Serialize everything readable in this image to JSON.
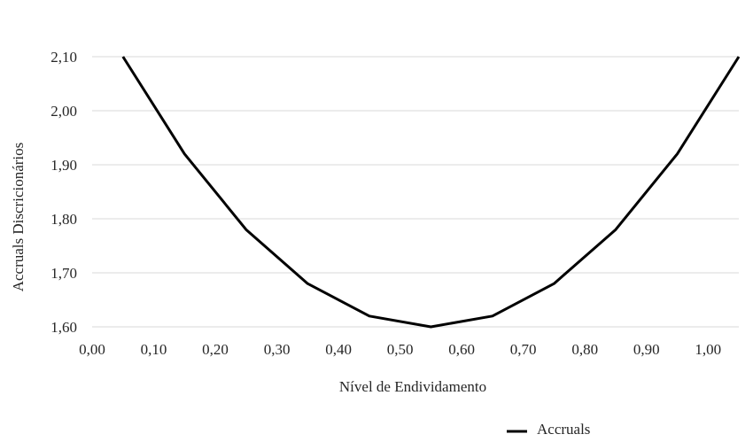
{
  "chart_data": {
    "type": "line",
    "title": "",
    "xlabel": "Nível de Endividamento",
    "ylabel": "Accruals Discricionários",
    "xlim": [
      0.0,
      1.05
    ],
    "ylim": [
      1.6,
      2.1
    ],
    "x_ticks": [
      "0,00",
      "0,10",
      "0,20",
      "0,30",
      "0,40",
      "0,50",
      "0,60",
      "0,70",
      "0,80",
      "0,90",
      "1,00"
    ],
    "y_ticks": [
      "1,60",
      "1,70",
      "1,80",
      "1,90",
      "2,00",
      "2,10"
    ],
    "grid": "horizontal",
    "legend_position": "bottom-right",
    "series": [
      {
        "name": "Accruals",
        "color": "#000000",
        "x": [
          0.05,
          0.15,
          0.25,
          0.35,
          0.45,
          0.55,
          0.65,
          0.75,
          0.85,
          0.95,
          1.05
        ],
        "y": [
          2.1,
          1.92,
          1.78,
          1.68,
          1.62,
          1.6,
          1.62,
          1.68,
          1.78,
          1.92,
          2.1
        ]
      }
    ]
  }
}
